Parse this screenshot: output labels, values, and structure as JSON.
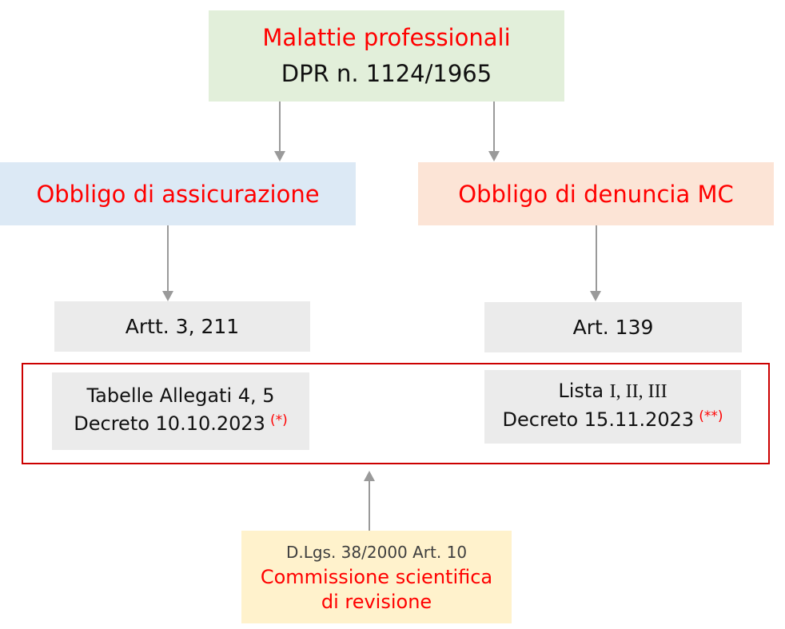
{
  "colors": {
    "root-bg": "#e2efda",
    "left-branch-bg": "#dce9f5",
    "right-branch-bg": "#fce4d6",
    "article-bg": "#ebebeb",
    "commission-bg": "#fff2cc",
    "red-text": "#ff0000",
    "frame-border": "#cc0000",
    "arrow": "#9a9a9a",
    "dark-text": "#111111",
    "muted-text": "#3f3f3f"
  },
  "root": {
    "title": "Malattie professionali",
    "subtitle": "DPR n. 1124/1965"
  },
  "left_branch": {
    "label": "Obbligo di assicurazione",
    "articles": "Artt. 3, 211",
    "detail": {
      "line1": "Tabelle Allegati 4, 5",
      "line2": "Decreto 10.10.2023",
      "note": "(*)"
    }
  },
  "right_branch": {
    "label": "Obbligo di denuncia MC",
    "articles": "Art. 139",
    "detail": {
      "line1_prefix": "Lista",
      "line1_numerals": "I, II, III",
      "line2": "Decreto 15.11.2023",
      "note": "(**)"
    }
  },
  "commission": {
    "line1": "D.Lgs. 38/2000 Art. 10",
    "line2": "Commissione scientifica",
    "line3": "di revisione"
  }
}
